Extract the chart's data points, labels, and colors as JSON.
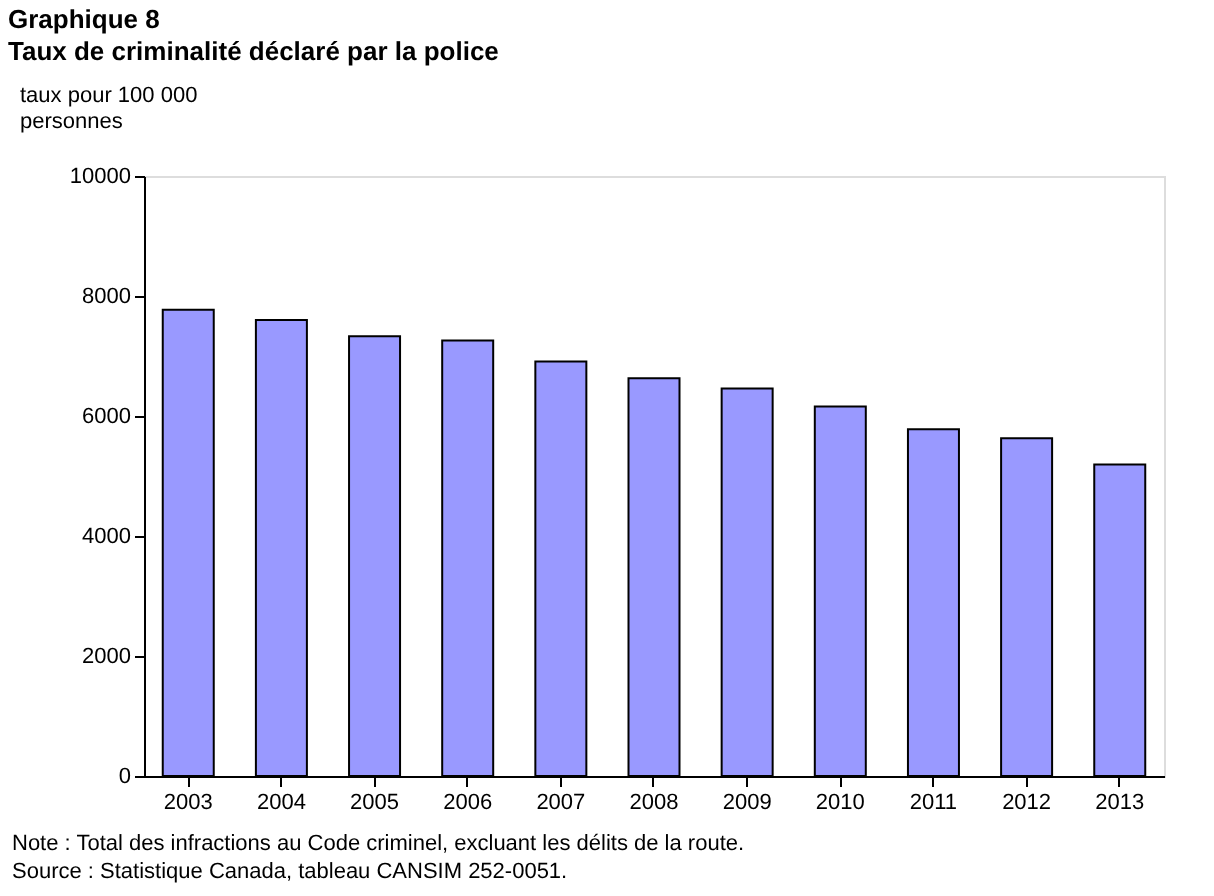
{
  "chart_data": {
    "type": "bar",
    "title": "Graphique 8",
    "subtitle": "Taux de criminalité déclaré par la police",
    "ylabel": "taux pour 100 000 personnes",
    "categories": [
      "2003",
      "2004",
      "2005",
      "2006",
      "2007",
      "2008",
      "2009",
      "2010",
      "2011",
      "2012",
      "2013"
    ],
    "values": [
      7770,
      7600,
      7330,
      7260,
      6910,
      6630,
      6460,
      6160,
      5780,
      5630,
      5190
    ],
    "color": "#9999ff",
    "ylim": [
      0,
      10000
    ],
    "yticks": [
      0,
      2000,
      4000,
      6000,
      8000,
      10000
    ],
    "grid": false,
    "annotations": [
      "Note : Total des infractions au Code criminel, excluant les délits de la route.",
      "Source : Statistique Canada, tableau CANSIM 252-0051."
    ]
  }
}
